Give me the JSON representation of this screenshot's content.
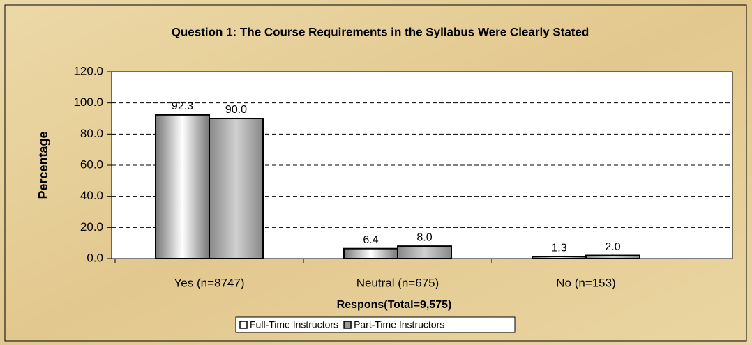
{
  "chart_data": {
    "type": "bar",
    "title": "Question 1:  The Course Requirements in the Syllabus Were Clearly Stated",
    "y_label": "Percentage",
    "x_label": "Respons(Total=9,575)",
    "categories": [
      "Yes (n=8747)",
      "Neutral (n=675)",
      "No (n=153)"
    ],
    "series": [
      {
        "name": "Full-Time Instructors",
        "color": "#ffffff",
        "values": [
          92.3,
          6.4,
          1.3
        ],
        "value_labels": [
          "92.3",
          "6.4",
          "1.3"
        ]
      },
      {
        "name": "Part-Time Instructors",
        "color": "#999999",
        "values": [
          90.0,
          8.0,
          2.0
        ],
        "value_labels": [
          "90.0",
          "8.0",
          "2.0"
        ]
      }
    ],
    "ylim": [
      0,
      120
    ],
    "yticks": [
      {
        "value": 0,
        "label": "0.0"
      },
      {
        "value": 20,
        "label": "20.0"
      },
      {
        "value": 40,
        "label": "40.0"
      },
      {
        "value": 60,
        "label": "60.0"
      },
      {
        "value": 80,
        "label": "80.0"
      },
      {
        "value": 100,
        "label": "100.0"
      },
      {
        "value": 120,
        "label": "120.0"
      }
    ],
    "grid": true,
    "legend": "bottom"
  }
}
